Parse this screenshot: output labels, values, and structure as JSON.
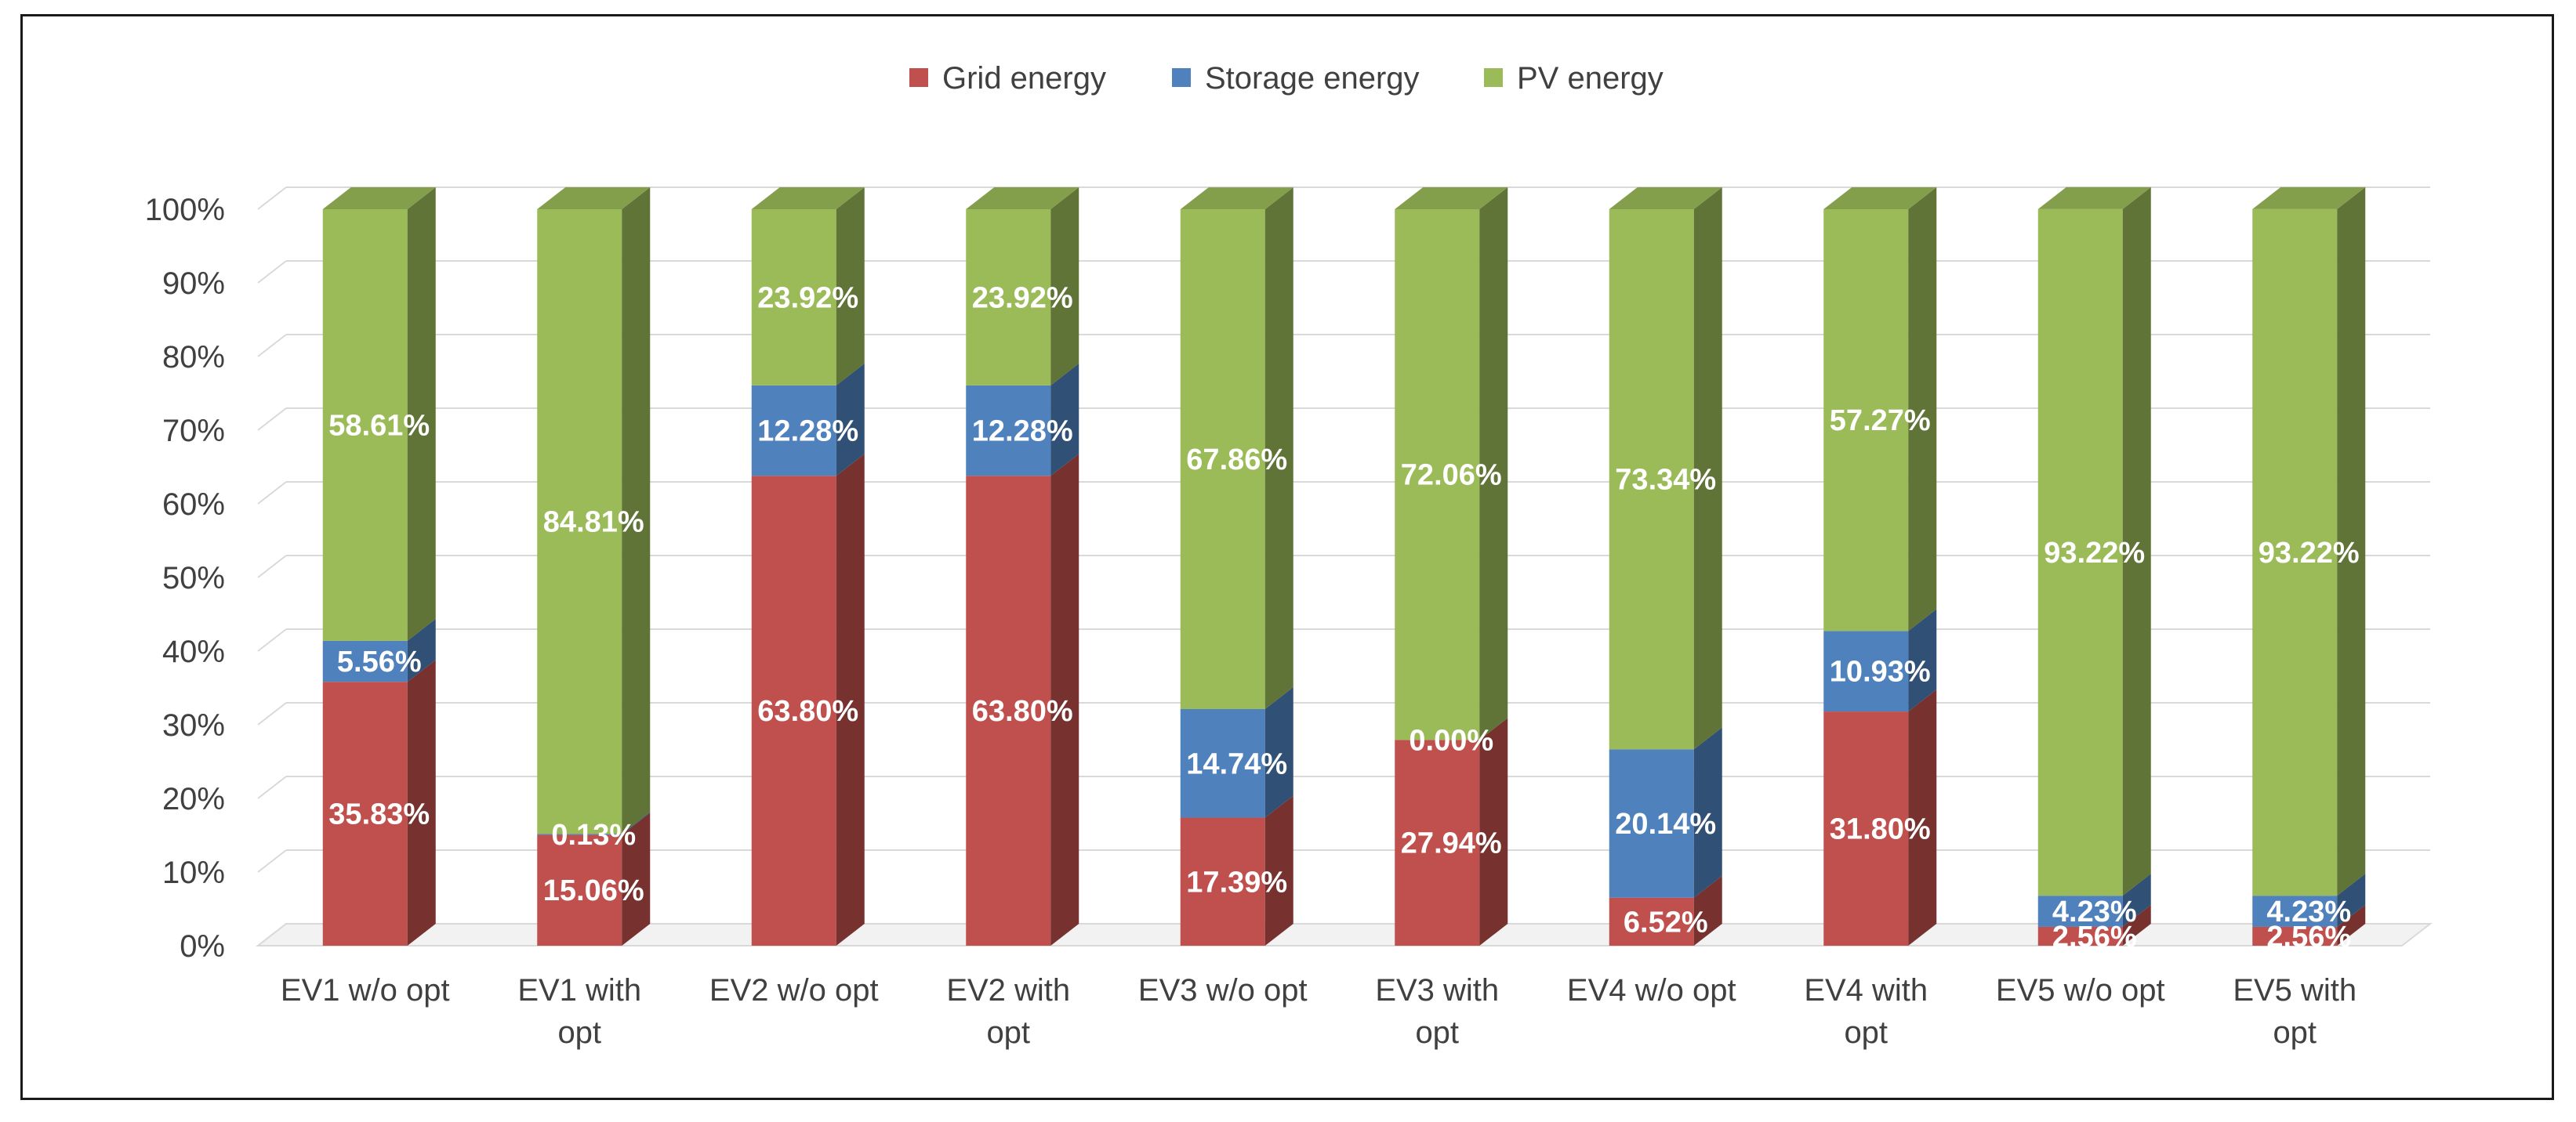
{
  "chart_data": {
    "type": "bar",
    "stacked": true,
    "percent_stacked": true,
    "three_d": true,
    "categories": [
      "EV1 w/o opt",
      "EV1 with opt",
      "EV2 w/o opt",
      "EV2 with opt",
      "EV3 w/o opt",
      "EV3 with opt",
      "EV4 w/o opt",
      "EV4 with opt",
      "EV5 w/o opt",
      "EV5 with opt"
    ],
    "series": [
      {
        "name": "Grid energy",
        "color": "#C0504D",
        "values": [
          35.83,
          15.06,
          63.8,
          63.8,
          17.39,
          27.94,
          6.52,
          31.8,
          2.56,
          2.56
        ],
        "labels": [
          "35.83%",
          "15.06%",
          "63.80%",
          "63.80%",
          "17.39%",
          "27.94%",
          "6.52%",
          "31.80%",
          "2.56%",
          "2.56%"
        ]
      },
      {
        "name": "Storage energy",
        "color": "#4F81BD",
        "values": [
          5.56,
          0.13,
          12.28,
          12.28,
          14.74,
          0.0,
          20.14,
          10.93,
          4.23,
          4.23
        ],
        "labels": [
          "5.56%",
          "0.13%",
          "12.28%",
          "12.28%",
          "14.74%",
          "0.00%",
          "20.14%",
          "10.93%",
          "4.23%",
          "4.23%"
        ]
      },
      {
        "name": "PV energy",
        "color": "#9BBB59",
        "values": [
          58.61,
          84.81,
          23.92,
          23.92,
          67.86,
          72.06,
          73.34,
          57.27,
          93.22,
          93.22
        ],
        "labels": [
          "58.61%",
          "84.81%",
          "23.92%",
          "23.92%",
          "67.86%",
          "72.06%",
          "73.34%",
          "57.27%",
          "93.22%",
          "93.22%"
        ]
      }
    ],
    "ylim": [
      0,
      100
    ],
    "yticks": [
      "0%",
      "10%",
      "20%",
      "30%",
      "40%",
      "50%",
      "60%",
      "70%",
      "80%",
      "90%",
      "100%"
    ],
    "grid": true,
    "legend_position": "top-center",
    "title": "",
    "xlabel": "",
    "ylabel": ""
  }
}
